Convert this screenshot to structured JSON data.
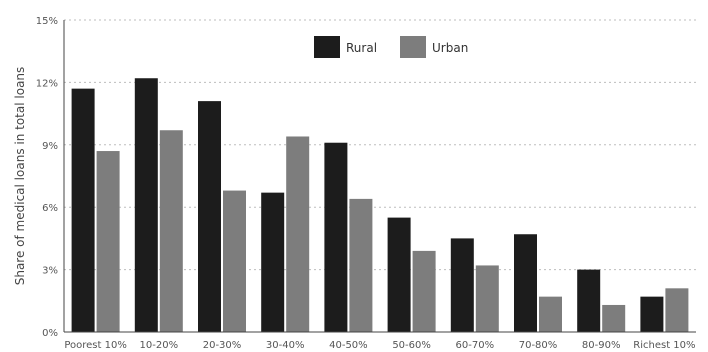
{
  "chart_data": {
    "type": "bar",
    "ylabel": "Share of medical loans in total loans",
    "xlabel": "",
    "categories": [
      "Poorest 10%",
      "10-20%",
      "20-30%",
      "30-40%",
      "40-50%",
      "50-60%",
      "60-70%",
      "70-80%",
      "80-90%",
      "Richest 10%"
    ],
    "series": [
      {
        "name": "Rural",
        "color": "#1c1c1c",
        "values": [
          11.7,
          12.2,
          11.1,
          6.7,
          9.1,
          5.5,
          4.5,
          4.7,
          3.0,
          1.7
        ]
      },
      {
        "name": "Urban",
        "color": "#7d7d7d",
        "values": [
          8.7,
          9.7,
          6.8,
          9.4,
          6.4,
          3.9,
          3.2,
          1.7,
          1.3,
          2.1
        ]
      }
    ],
    "ylim": [
      0,
      15
    ],
    "yticks": [
      "0%",
      "3%",
      "6%",
      "9%",
      "12%",
      "15%"
    ],
    "ytick_values": [
      0,
      3,
      6,
      9,
      12,
      15
    ],
    "grid": true,
    "legend_position": "top-center"
  }
}
